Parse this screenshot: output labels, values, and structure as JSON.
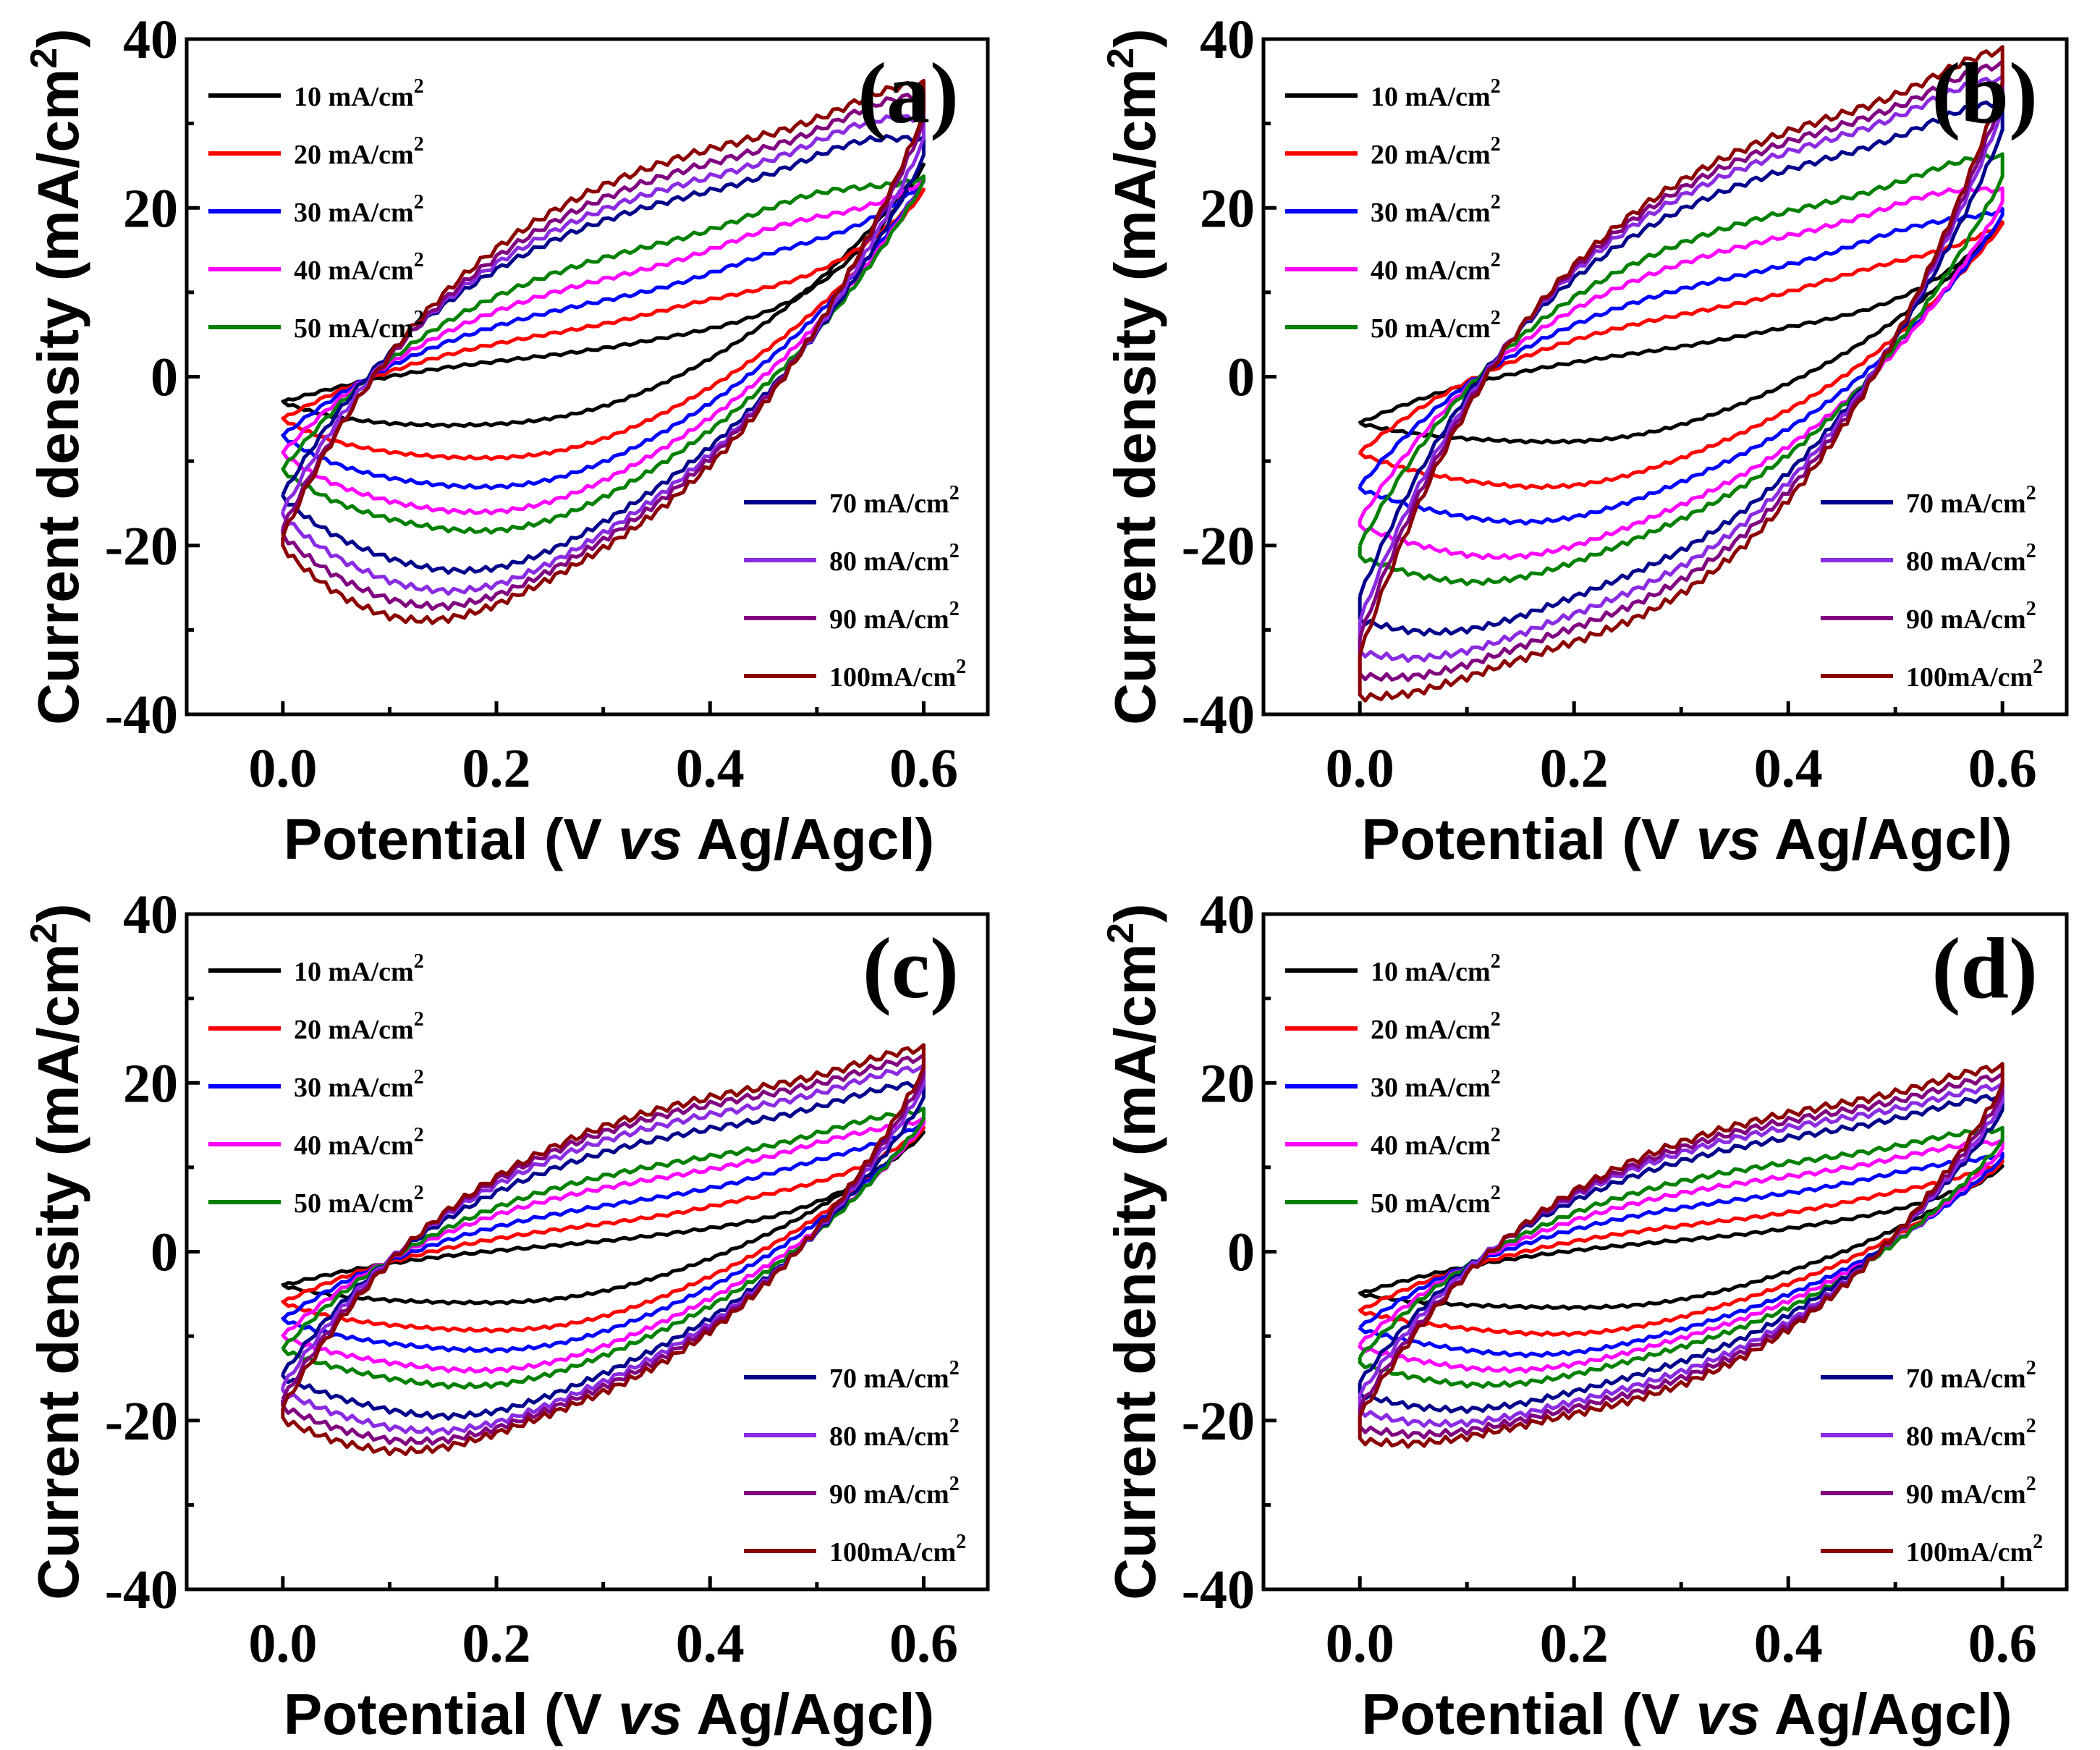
{
  "chart_data": [
    {
      "type": "line",
      "panel": "(a)",
      "xlabel_parts": [
        "Potential (V ",
        "vs",
        " Ag/Agcl)"
      ],
      "ylabel": "Current density (mA/cm",
      "ylabel_sup": "2",
      "ylabel_close": ")",
      "xlim": [
        -0.09,
        0.66
      ],
      "ylim": [
        -40,
        40
      ],
      "xticks": [
        "0.0",
        "0.2",
        "0.4",
        "0.6"
      ],
      "xtick_values": [
        0,
        0.2,
        0.4,
        0.6
      ],
      "yticks": [
        "40",
        "20",
        "0",
        "-20",
        "-40"
      ],
      "ytick_values": [
        40,
        20,
        0,
        -20,
        -40
      ],
      "series": [
        {
          "name": "10 mA/cm",
          "sup": "2",
          "color": "#000000",
          "pos": 0.05,
          "ipa": 4,
          "ipc": -6,
          "epa": 0.37,
          "epc": 0.28,
          "imax": 25,
          "imin": -3
        },
        {
          "name": "20 mA/cm",
          "sup": "2",
          "color": "#ff0000",
          "pos": 0.1,
          "ipa": 8,
          "ipc": -9.5,
          "epa": 0.4,
          "epc": 0.26,
          "imax": 22,
          "imin": -5
        },
        {
          "name": "30 mA/cm",
          "sup": "2",
          "color": "#0000ff",
          "pos": 0.2,
          "ipa": 12,
          "ipc": -12.5,
          "epa": 0.46,
          "epc": 0.24,
          "imax": 23,
          "imin": -7
        },
        {
          "name": "40 mA/cm",
          "sup": "2",
          "color": "#ff00ff",
          "pos": 0.3,
          "ipa": 15.5,
          "ipc": -15,
          "epa": 0.47,
          "epc": 0.22,
          "imax": 23,
          "imin": -9
        },
        {
          "name": "50 mA/cm",
          "sup": "2",
          "color": "#008000",
          "pos": 0.4,
          "ipa": 19,
          "ipc": -17,
          "epa": 0.5,
          "epc": 0.22,
          "imax": 23,
          "imin": -11
        },
        {
          "name": "70 mA/cm",
          "sup": "2",
          "color": "#00008b",
          "pos": 0.55,
          "ipa": 25,
          "ipc": -21,
          "epa": 0.55,
          "epc": 0.19,
          "imax": 26,
          "imin": -14
        },
        {
          "name": "80 mA/cm",
          "sup": "2",
          "color": "#8a2be2",
          "pos": 0.65,
          "ipa": 27,
          "ipc": -23,
          "epa": 0.56,
          "epc": 0.17,
          "imax": 28,
          "imin": -16
        },
        {
          "name": "90 mA/cm",
          "sup": "2",
          "color": "#800080",
          "pos": 0.75,
          "ipa": 29,
          "ipc": -24.5,
          "epa": 0.58,
          "epc": 0.15,
          "imax": 30,
          "imin": -18
        },
        {
          "name": "100mA/cm",
          "sup": "2",
          "color": "#8b0000",
          "pos": 0.85,
          "ipa": 31,
          "ipc": -26,
          "epa": 0.59,
          "epc": 0.13,
          "imax": 31,
          "imin": -19
        }
      ]
    },
    {
      "type": "line",
      "panel": "(b)",
      "xlabel_parts": [
        "Potential (V ",
        "vs",
        " Ag/Agcl)"
      ],
      "ylabel": "Current density (mA/cm",
      "ylabel_sup": "2",
      "ylabel_close": ")",
      "xlim": [
        -0.09,
        0.66
      ],
      "ylim": [
        -40,
        40
      ],
      "xticks": [
        "0.0",
        "0.2",
        "0.4",
        "0.6"
      ],
      "xtick_values": [
        0,
        0.2,
        0.4,
        0.6
      ],
      "yticks": [
        "40",
        "20",
        "0",
        "-20",
        "-40"
      ],
      "ytick_values": [
        40,
        20,
        0,
        -20,
        -40
      ],
      "series": [
        {
          "name": "10 mA/cm",
          "sup": "2",
          "color": "#000000",
          "pos": 0.05,
          "ipa": 5,
          "ipc": -7.5,
          "epa": 0.4,
          "epc": 0.25,
          "imax": 18,
          "imin": -5.5
        },
        {
          "name": "20 mA/cm",
          "sup": "2",
          "color": "#ff0000",
          "pos": 0.15,
          "ipa": 10.5,
          "ipc": -12,
          "epa": 0.48,
          "epc": 0.2,
          "imax": 18,
          "imin": -9
        },
        {
          "name": "30 mA/cm",
          "sup": "2",
          "color": "#0000ff",
          "pos": 0.25,
          "ipa": 15,
          "ipc": -15.5,
          "epa": 0.52,
          "epc": 0.17,
          "imax": 19,
          "imin": -13
        },
        {
          "name": "40 mA/cm",
          "sup": "2",
          "color": "#ff00ff",
          "pos": 0.35,
          "ipa": 19.5,
          "ipc": -19,
          "epa": 0.55,
          "epc": 0.14,
          "imax": 20.5,
          "imin": -17
        },
        {
          "name": "50 mA/cm",
          "sup": "2",
          "color": "#008000",
          "pos": 0.45,
          "ipa": 23,
          "ipc": -21.5,
          "epa": 0.58,
          "epc": 0.11,
          "imax": 23.5,
          "imin": -20
        },
        {
          "name": "70 mA/cm",
          "sup": "2",
          "color": "#00008b",
          "pos": 0.6,
          "ipa": 29,
          "ipc": -26.5,
          "epa": 0.59,
          "epc": 0.07,
          "imax": 29,
          "imin": -26
        },
        {
          "name": "80 mA/cm",
          "sup": "2",
          "color": "#8a2be2",
          "pos": 0.7,
          "ipa": 31.5,
          "ipc": -29,
          "epa": 0.59,
          "epc": 0.05,
          "imax": 31.5,
          "imin": -29
        },
        {
          "name": "90 mA/cm",
          "sup": "2",
          "color": "#800080",
          "pos": 0.8,
          "ipa": 33,
          "ipc": -31,
          "epa": 0.6,
          "epc": 0.03,
          "imax": 33,
          "imin": -31
        },
        {
          "name": "100mA/cm",
          "sup": "2",
          "color": "#8b0000",
          "pos": 0.9,
          "ipa": 34.5,
          "ipc": -33,
          "epa": 0.6,
          "epc": 0.01,
          "imax": 34.5,
          "imin": -33
        }
      ]
    },
    {
      "type": "line",
      "panel": "(c)",
      "xlabel_parts": [
        "Potential (V ",
        "vs",
        " Ag/Agcl)"
      ],
      "ylabel": "Current density (mA/cm",
      "ylabel_sup": "2",
      "ylabel_close": ")",
      "xlim": [
        -0.09,
        0.66
      ],
      "ylim": [
        -40,
        40
      ],
      "xticks": [
        "0.0",
        "0.2",
        "0.4",
        "0.6"
      ],
      "xtick_values": [
        0,
        0.2,
        0.4,
        0.6
      ],
      "yticks": [
        "40",
        "20",
        "0",
        "-20",
        "-40"
      ],
      "ytick_values": [
        40,
        20,
        0,
        -20,
        -40
      ],
      "series": [
        {
          "name": "10 mA/cm",
          "sup": "2",
          "color": "#000000",
          "pos": 0.05,
          "ipa": 2,
          "ipc": -6,
          "epa": 0.38,
          "epc": 0.27,
          "imax": 14,
          "imin": -4
        },
        {
          "name": "20 mA/cm",
          "sup": "2",
          "color": "#ff0000",
          "pos": 0.12,
          "ipa": 5,
          "ipc": -9,
          "epa": 0.45,
          "epc": 0.26,
          "imax": 14.5,
          "imin": -6
        },
        {
          "name": "30 mA/cm",
          "sup": "2",
          "color": "#0000ff",
          "pos": 0.2,
          "ipa": 8,
          "ipc": -11,
          "epa": 0.5,
          "epc": 0.24,
          "imax": 15,
          "imin": -8
        },
        {
          "name": "40 mA/cm",
          "sup": "2",
          "color": "#ff00ff",
          "pos": 0.3,
          "ipa": 11,
          "ipc": -13,
          "epa": 0.53,
          "epc": 0.22,
          "imax": 15,
          "imin": -10
        },
        {
          "name": "50 mA/cm",
          "sup": "2",
          "color": "#008000",
          "pos": 0.4,
          "ipa": 13,
          "ipc": -14.5,
          "epa": 0.56,
          "epc": 0.2,
          "imax": 15.5,
          "imin": -11.5
        },
        {
          "name": "70 mA/cm",
          "sup": "2",
          "color": "#00008b",
          "pos": 0.55,
          "ipa": 17,
          "ipc": -17.5,
          "epa": 0.58,
          "epc": 0.17,
          "imax": 18,
          "imin": -14.5
        },
        {
          "name": "80 mA/cm",
          "sup": "2",
          "color": "#8a2be2",
          "pos": 0.65,
          "ipa": 19,
          "ipc": -19,
          "epa": 0.59,
          "epc": 0.15,
          "imax": 19.5,
          "imin": -16
        },
        {
          "name": "90 mA/cm",
          "sup": "2",
          "color": "#800080",
          "pos": 0.75,
          "ipa": 20.5,
          "ipc": -20,
          "epa": 0.6,
          "epc": 0.13,
          "imax": 20.5,
          "imin": -17.5
        },
        {
          "name": "100mA/cm",
          "sup": "2",
          "color": "#8b0000",
          "pos": 0.85,
          "ipa": 21.5,
          "ipc": -21,
          "epa": 0.6,
          "epc": 0.11,
          "imax": 21.5,
          "imin": -18.5
        }
      ]
    },
    {
      "type": "line",
      "panel": "(d)",
      "xlabel_parts": [
        "Potential (V ",
        "vs",
        " Ag/Agcl)"
      ],
      "ylabel": "Current density (mA/cm",
      "ylabel_sup": "2",
      "ylabel_close": ")",
      "xlim": [
        -0.09,
        0.66
      ],
      "ylim": [
        -40,
        40
      ],
      "xticks": [
        "0.0",
        "0.2",
        "0.4",
        "0.6"
      ],
      "xtick_values": [
        0,
        0.2,
        0.4,
        0.6
      ],
      "yticks": [
        "40",
        "20",
        "0",
        "-20",
        "-40"
      ],
      "ytick_values": [
        40,
        20,
        0,
        -20,
        -40
      ],
      "series": [
        {
          "name": "10 mA/cm",
          "sup": "2",
          "color": "#000000",
          "pos": 0.05,
          "ipa": 2.5,
          "ipc": -6.5,
          "epa": 0.45,
          "epc": 0.28,
          "imax": 10,
          "imin": -5
        },
        {
          "name": "20 mA/cm",
          "sup": "2",
          "color": "#ff0000",
          "pos": 0.12,
          "ipa": 5,
          "ipc": -9,
          "epa": 0.5,
          "epc": 0.22,
          "imax": 10.5,
          "imin": -7
        },
        {
          "name": "30 mA/cm",
          "sup": "2",
          "color": "#0000ff",
          "pos": 0.2,
          "ipa": 8,
          "ipc": -11,
          "epa": 0.53,
          "epc": 0.18,
          "imax": 11,
          "imin": -9
        },
        {
          "name": "40 mA/cm",
          "sup": "2",
          "color": "#ff00ff",
          "pos": 0.3,
          "ipa": 10.5,
          "ipc": -12.5,
          "epa": 0.56,
          "epc": 0.15,
          "imax": 12,
          "imin": -11
        },
        {
          "name": "50 mA/cm",
          "sup": "2",
          "color": "#008000",
          "pos": 0.4,
          "ipa": 12.5,
          "ipc": -14,
          "epa": 0.58,
          "epc": 0.12,
          "imax": 13,
          "imin": -12.5
        },
        {
          "name": "70 mA/cm",
          "sup": "2",
          "color": "#00008b",
          "pos": 0.55,
          "ipa": 16,
          "ipc": -16.5,
          "epa": 0.59,
          "epc": 0.09,
          "imax": 16.5,
          "imin": -15.5
        },
        {
          "name": "80 mA/cm",
          "sup": "2",
          "color": "#8a2be2",
          "pos": 0.65,
          "ipa": 17.5,
          "ipc": -18,
          "epa": 0.6,
          "epc": 0.07,
          "imax": 17.5,
          "imin": -17
        },
        {
          "name": "90 mA/cm",
          "sup": "2",
          "color": "#800080",
          "pos": 0.75,
          "ipa": 18.5,
          "ipc": -19,
          "epa": 0.6,
          "epc": 0.05,
          "imax": 18.5,
          "imin": -18.5
        },
        {
          "name": "100mA/cm",
          "sup": "2",
          "color": "#8b0000",
          "pos": 0.85,
          "ipa": 19.5,
          "ipc": -20,
          "epa": 0.6,
          "epc": 0.03,
          "imax": 19.5,
          "imin": -19.5
        }
      ]
    }
  ]
}
